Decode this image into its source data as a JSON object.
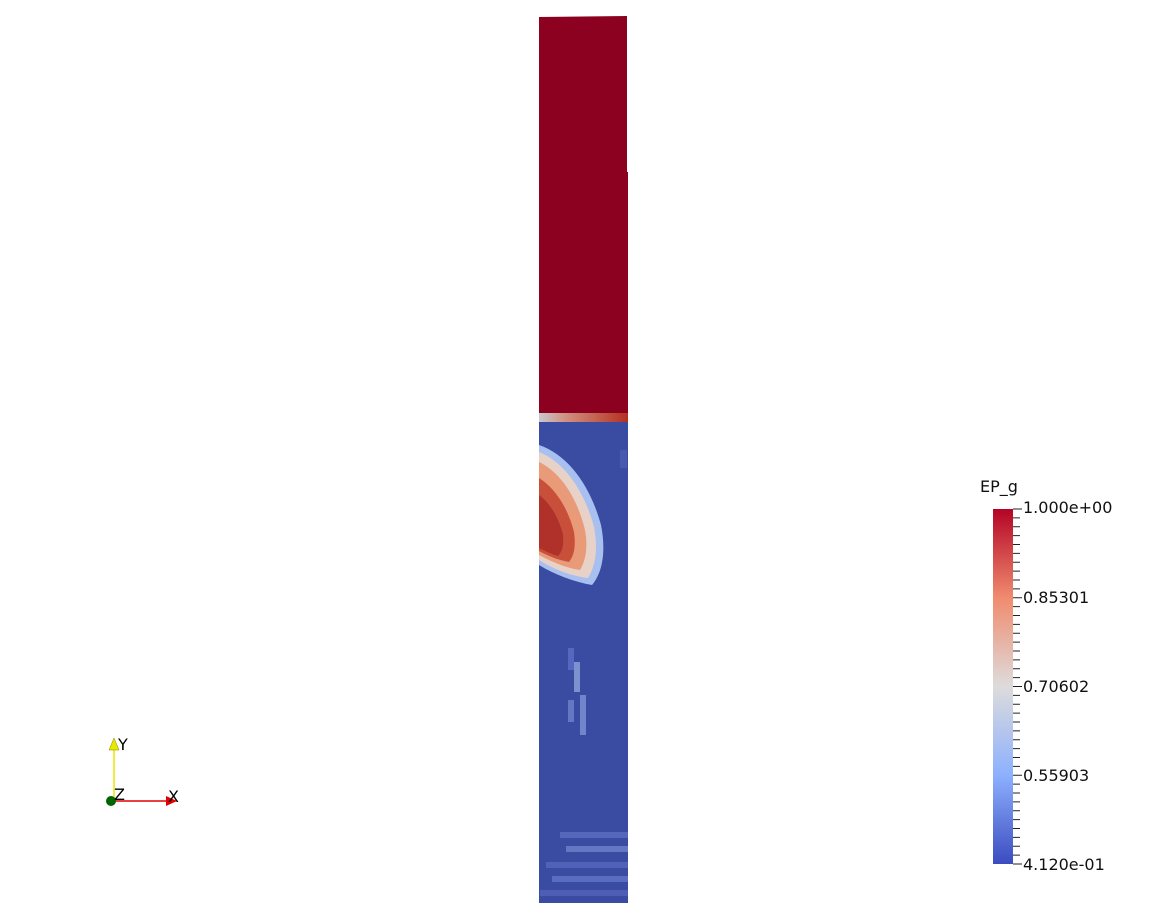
{
  "scalar_bar": {
    "title": "EP_g",
    "labels": [
      "1.000e+00",
      "0.85301",
      "0.70602",
      "0.55903",
      "4.120e-01"
    ],
    "colormap": [
      "#b40426",
      "#f08b6e",
      "#dddcdc",
      "#8db0fe",
      "#3b4cc0"
    ]
  },
  "orientation_axes": {
    "x_label": "X",
    "y_label": "Y",
    "z_label": "Z",
    "x_color": "#e00000",
    "y_color": "#e8e800",
    "z_color": "#006400"
  },
  "field": {
    "gas_fraction_color": "#8c0020",
    "solid_color": "#3a4ca2"
  }
}
